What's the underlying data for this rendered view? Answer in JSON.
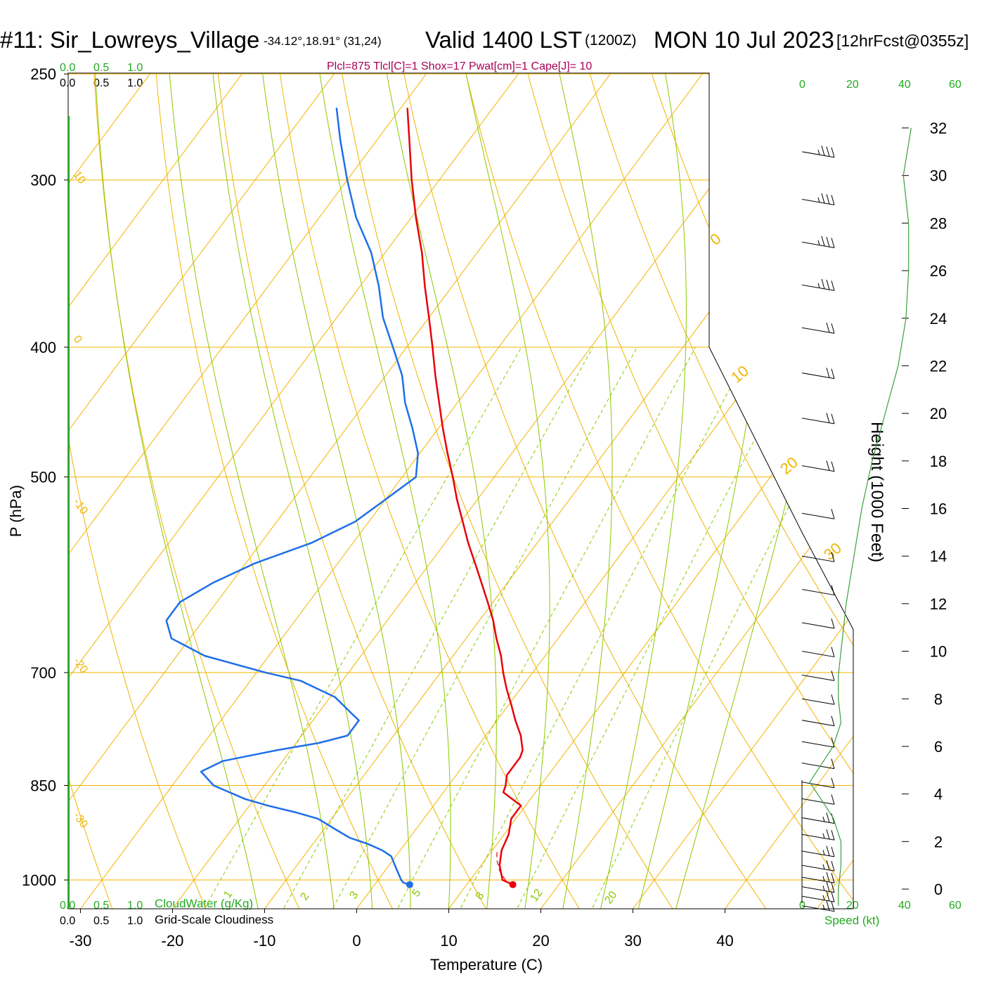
{
  "header": {
    "station": "#11: Sir_Lowreys_Village",
    "coords": "-34.12°,18.91° (31,24)",
    "valid": "Valid 1400 LST",
    "utc": "(1200Z)",
    "date": "MON 10 Jul 2023",
    "forecast": "[12hrFcst@0355z]",
    "indices": "Plcl=875 Tlcl[C]=1 Shox=17 Pwat[cm]=1 Cape[J]= 10"
  },
  "colors": {
    "temperature": "#e8000b",
    "dewpoint": "#1f6fe8",
    "isotherm": "#f0b400",
    "isobar": "#f0b400",
    "adiabat": "#8cc800",
    "mixing_ratio": "#8cc800",
    "cloud_scale": "#22aa22",
    "indices": "#aa0055",
    "wind_profile": "#3aa03a"
  },
  "cloud_scales": {
    "cloudwater_ticks": [
      "0.0",
      "0.5",
      "1.0"
    ],
    "cloudwater_label": "CloudWater (g/Kg)",
    "cloudiness_ticks": [
      "0.0",
      "0.5",
      "1.0"
    ],
    "cloudiness_label": "Grid-Scale Cloudiness"
  },
  "wind_panel": {
    "speed_ticks": [
      "0",
      "20",
      "40",
      "60"
    ],
    "speed_label": "Speed (kt)"
  },
  "height_axis": {
    "label": "Height (1000 Feet)",
    "ticks": [
      "0",
      "2",
      "4",
      "6",
      "8",
      "10",
      "12",
      "14",
      "16",
      "18",
      "20",
      "22",
      "24",
      "26",
      "28",
      "30",
      "32"
    ]
  },
  "chart_data": {
    "type": "line",
    "title": "",
    "xlabel": "Temperature (C)",
    "ylabel": "P (hPa)",
    "x_ticks": [
      -30,
      -20,
      -10,
      0,
      10,
      20,
      30,
      40
    ],
    "y_ticks": [
      250,
      300,
      400,
      500,
      700,
      850,
      1000
    ],
    "dry_adiabat_labels": [
      "10",
      "0",
      "-10",
      "-20",
      "-30"
    ],
    "moist_adiabat_labels": [
      "0",
      "10",
      "20",
      "30"
    ],
    "mixing_ratio_labels": [
      "1",
      "2",
      "3",
      "5",
      "8",
      "12",
      "20"
    ],
    "series": [
      {
        "name": "",
        "pressure": [
          1008,
          1000,
          975,
          950,
          925,
          900,
          880,
          870,
          860,
          850,
          835,
          825,
          820,
          810,
          800,
          780,
          760,
          740,
          720,
          700,
          680,
          660,
          640,
          620,
          600,
          580,
          560,
          540,
          520,
          500,
          480,
          460,
          440,
          420,
          400,
          380,
          360,
          340,
          320,
          300,
          280,
          265
        ],
        "x": [
          15,
          13.5,
          12.0,
          11.0,
          10.5,
          9.5,
          9.5,
          8.0,
          6.5,
          6.2,
          5.5,
          5.5,
          5.5,
          5.5,
          5.2,
          3.8,
          2.0,
          0.3,
          -1.5,
          -3.2,
          -4.8,
          -6.7,
          -8.5,
          -10.6,
          -12.8,
          -15.1,
          -17.5,
          -19.8,
          -22.2,
          -24.5,
          -27.0,
          -29.5,
          -32.0,
          -34.6,
          -37.2,
          -40.0,
          -43.0,
          -46.0,
          -49.5,
          -53.0,
          -56.5,
          -59.3
        ]
      },
      {
        "name": "",
        "pressure": [
          1008,
          1005,
          1000,
          980,
          960,
          950,
          940,
          930,
          915,
          900,
          890,
          880,
          870,
          850,
          830,
          815,
          800,
          790,
          780,
          760,
          750,
          730,
          710,
          700,
          680,
          660,
          640,
          620,
          600,
          580,
          560,
          540,
          520,
          500,
          480,
          460,
          440,
          420,
          400,
          380,
          360,
          340,
          320,
          300,
          280,
          265
        ],
        "x": [
          3.8,
          3.0,
          2.5,
          1.0,
          -0.5,
          -2.0,
          -4.0,
          -6.5,
          -9.0,
          -11.5,
          -14.5,
          -18.0,
          -21.0,
          -25.5,
          -28.0,
          -26.5,
          -21.5,
          -17.5,
          -15.0,
          -15.0,
          -16.5,
          -19.5,
          -24.5,
          -29.0,
          -37.0,
          -42.0,
          -44.0,
          -44.0,
          -42.0,
          -39.0,
          -34.5,
          -31.5,
          -30.0,
          -28.5,
          -30.2,
          -32.8,
          -35.7,
          -38.2,
          -41.5,
          -45.0,
          -48.0,
          -51.5,
          -56.0,
          -60.0,
          -64.0,
          -67.0
        ]
      }
    ],
    "parcel_path": {
      "pressure": [
        1008,
        1000,
        985,
        965,
        950
      ],
      "x": [
        15,
        13.8,
        12.5,
        11.2,
        10.5
      ]
    },
    "winds_kt": [
      {
        "height_kft": -0.7,
        "speed": 15
      },
      {
        "height_kft": -0.3,
        "speed": 15
      },
      {
        "height_kft": 0.1,
        "speed": 15
      },
      {
        "height_kft": 0.5,
        "speed": 15
      },
      {
        "height_kft": 1.0,
        "speed": 15
      },
      {
        "height_kft": 1.6,
        "speed": 15
      },
      {
        "height_kft": 2.3,
        "speed": 15
      },
      {
        "height_kft": 3.0,
        "speed": 15
      },
      {
        "height_kft": 3.8,
        "speed": 10
      },
      {
        "height_kft": 4.5,
        "speed": 10
      },
      {
        "height_kft": 5.3,
        "speed": 10
      },
      {
        "height_kft": 6.2,
        "speed": 10
      },
      {
        "height_kft": 7.1,
        "speed": 10
      },
      {
        "height_kft": 8.0,
        "speed": 10
      },
      {
        "height_kft": 9.0,
        "speed": 10
      },
      {
        "height_kft": 10.0,
        "speed": 10
      },
      {
        "height_kft": 11.2,
        "speed": 10
      },
      {
        "height_kft": 12.6,
        "speed": 10
      },
      {
        "height_kft": 14.0,
        "speed": 10
      },
      {
        "height_kft": 15.8,
        "speed": 10
      },
      {
        "height_kft": 17.8,
        "speed": 20
      },
      {
        "height_kft": 19.8,
        "speed": 20
      },
      {
        "height_kft": 21.7,
        "speed": 20
      },
      {
        "height_kft": 23.6,
        "speed": 20
      },
      {
        "height_kft": 25.4,
        "speed": 25
      },
      {
        "height_kft": 27.2,
        "speed": 25
      },
      {
        "height_kft": 29.0,
        "speed": 25
      },
      {
        "height_kft": 31.0,
        "speed": 25
      }
    ],
    "wind_speed_profile": {
      "height_kft": [
        -0.7,
        0,
        1,
        2,
        3,
        4,
        4.5,
        5,
        6,
        7,
        8,
        9,
        10,
        12,
        14,
        16,
        18,
        20,
        22,
        24,
        26,
        28,
        30,
        32
      ],
      "speed": [
        14,
        14,
        15,
        15,
        12,
        6,
        3,
        6,
        12,
        15,
        14,
        14,
        15,
        17,
        20,
        23,
        27,
        32,
        37,
        40,
        41,
        41,
        39,
        42
      ]
    }
  }
}
